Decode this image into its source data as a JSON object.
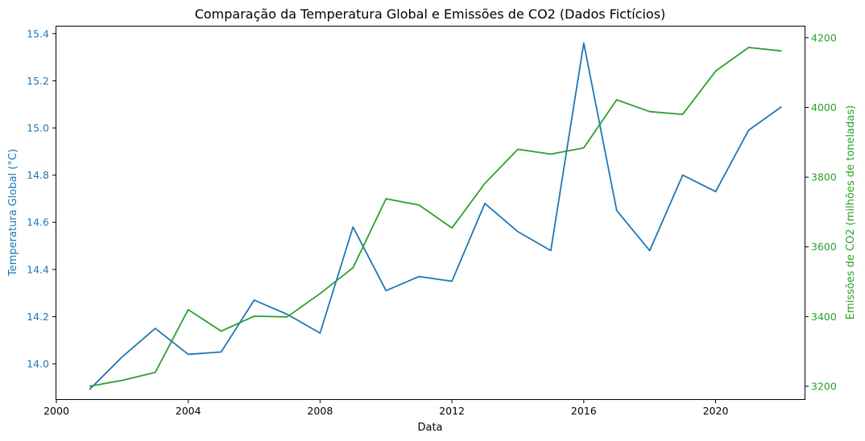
{
  "chart_data": {
    "type": "line",
    "title": "Comparação da Temperatura Global e Emissões de CO2 (Dados Fictícios)",
    "xlabel": "Data",
    "ylabel_left": "Temperatura Global (°C)",
    "ylabel_right": "Emissões de CO2 (milhões de toneladas)",
    "x": [
      2001,
      2002,
      2003,
      2004,
      2005,
      2006,
      2007,
      2008,
      2009,
      2010,
      2011,
      2012,
      2013,
      2014,
      2015,
      2016,
      2017,
      2018,
      2019,
      2020,
      2021,
      2022
    ],
    "x_ticks": [
      "2000",
      "2004",
      "2008",
      "2012",
      "2016",
      "2020"
    ],
    "y_left_ticks": [
      "14.0",
      "14.2",
      "14.4",
      "14.6",
      "14.8",
      "15.0",
      "15.2",
      "15.4"
    ],
    "y_right_ticks": [
      "3200",
      "3400",
      "3600",
      "3800",
      "4000",
      "4200"
    ],
    "xlim": [
      2000,
      2022.7
    ],
    "ylim_left": [
      13.85,
      15.43
    ],
    "ylim_right": [
      3163,
      4232
    ],
    "grid": false,
    "series": [
      {
        "axis": "left",
        "color": "#1f77b4",
        "values": [
          13.89,
          14.03,
          14.15,
          14.04,
          14.05,
          14.27,
          14.21,
          14.13,
          14.58,
          14.31,
          14.37,
          14.35,
          14.68,
          14.56,
          14.48,
          15.36,
          14.65,
          14.48,
          14.8,
          14.73,
          14.99,
          15.09
        ]
      },
      {
        "axis": "right",
        "color": "#2ca02c",
        "values": [
          3200,
          3217,
          3240,
          3420,
          3358,
          3401,
          3399,
          3466,
          3540,
          3738,
          3720,
          3654,
          3782,
          3880,
          3866,
          3884,
          4022,
          3988,
          3980,
          4104,
          4172,
          4162
        ]
      }
    ]
  }
}
